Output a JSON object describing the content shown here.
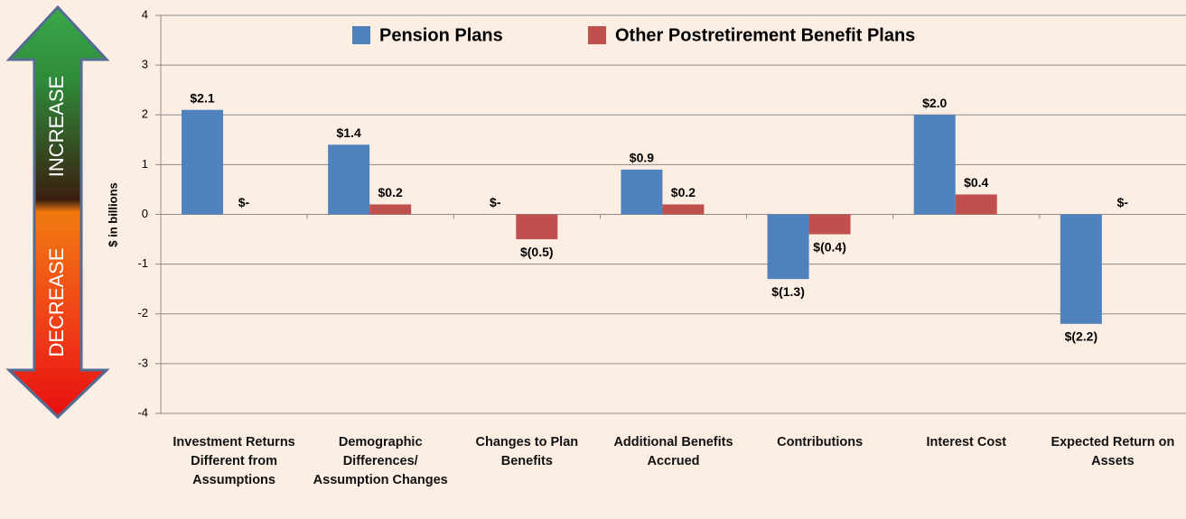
{
  "chart_data": {
    "type": "bar",
    "annotations": [
      "INCREASE",
      "DECREASE"
    ],
    "y_label": "$ in billions",
    "categories": [
      "Investment Returns Different from Assumptions",
      "Demographic Differences/ Assumption Changes",
      "Changes to Plan Benefits",
      "Additional Benefits Accrued",
      "Contributions",
      "Interest Cost",
      "Expected Return on Assets"
    ],
    "series": [
      {
        "name": "Pension Plans",
        "color": "#4f81bd",
        "values": [
          2.1,
          1.4,
          0,
          0.9,
          -1.3,
          2.0,
          -2.2
        ],
        "value_labels": [
          "$2.1",
          "$1.4",
          "$-",
          "$0.9",
          "$(1.3)",
          "$2.0",
          "$(2.2)"
        ]
      },
      {
        "name": "Other Postretirement Benefit Plans",
        "color": "#c0504d",
        "values": [
          0,
          0.2,
          -0.5,
          0.2,
          -0.4,
          0.4,
          0
        ],
        "value_labels": [
          "$-",
          "$0.2",
          "$(0.5)",
          "$0.2",
          "$(0.4)",
          "$0.4",
          "$-"
        ]
      }
    ],
    "ylim": [
      -4,
      4
    ],
    "yticks": [
      -4,
      -3,
      -2,
      -1,
      0,
      1,
      2,
      3,
      4
    ],
    "grid": true,
    "legend": "top"
  }
}
